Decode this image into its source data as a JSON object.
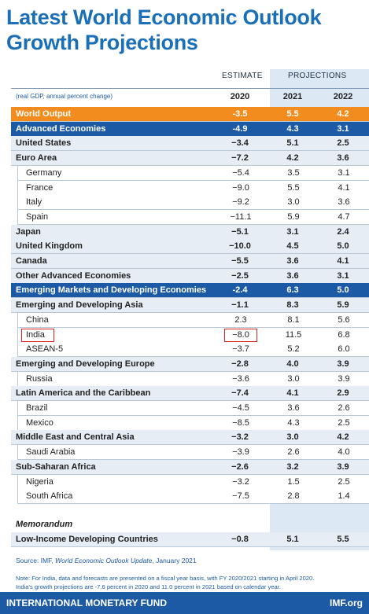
{
  "header": {
    "title_lines": [
      "Latest World Economic Outlook",
      "Growth Projections"
    ],
    "estimate": "ESTIMATE",
    "projections": "PROJECTIONS",
    "unit": "(real GDP, annual percent change)",
    "years": [
      "2020",
      "2021",
      "2022"
    ]
  },
  "table": {
    "rows": [
      [
        "World Output",
        "-3.5",
        "5.5",
        "4.2"
      ],
      [
        "Advanced Economies",
        "-4.9",
        "4.3",
        "3.1"
      ],
      [
        "United States",
        "−3.4",
        "5.1",
        "2.5"
      ],
      [
        "Euro Area",
        "−7.2",
        "4.2",
        "3.6"
      ],
      [
        "Germany",
        "−5.4",
        "3.5",
        "3.1"
      ],
      [
        "France",
        "−9.0",
        "5.5",
        "4.1"
      ],
      [
        "Italy",
        "−9.2",
        "3.0",
        "3.6"
      ],
      [
        "Spain",
        "−11.1",
        "5.9",
        "4.7"
      ],
      [
        "Japan",
        "−5.1",
        "3.1",
        "2.4"
      ],
      [
        "United Kingdom",
        "−10.0",
        "4.5",
        "5.0"
      ],
      [
        "Canada",
        "−5.5",
        "3.6",
        "4.1"
      ],
      [
        "Other Advanced Economies",
        "−2.5",
        "3.6",
        "3.1"
      ],
      [
        "Emerging Markets and Developing Economies",
        "-2.4",
        "6.3",
        "5.0"
      ],
      [
        "Emerging and Developing Asia",
        "−1.1",
        "8.3",
        "5.9"
      ],
      [
        "China",
        "2.3",
        "8.1",
        "5.6"
      ],
      [
        "India",
        "−8.0",
        "11.5",
        "6.8"
      ],
      [
        "ASEAN-5",
        "−3.7",
        "5.2",
        "6.0"
      ],
      [
        "Emerging and Developing Europe",
        "−2.8",
        "4.0",
        "3.9"
      ],
      [
        "Russia",
        "−3.6",
        "3.0",
        "3.9"
      ],
      [
        "Latin America and the Caribbean",
        "−7.4",
        "4.1",
        "2.9"
      ],
      [
        "Brazil",
        "−4.5",
        "3.6",
        "2.6"
      ],
      [
        "Mexico",
        "−8.5",
        "4.3",
        "2.5"
      ],
      [
        "Middle East and Central Asia",
        "−3.2",
        "3.0",
        "4.2"
      ],
      [
        "Saudi Arabia",
        "−3.9",
        "2.6",
        "4.0"
      ],
      [
        "Sub-Saharan Africa",
        "−2.6",
        "3.2",
        "3.9"
      ],
      [
        "Nigeria",
        "−3.2",
        "1.5",
        "2.5"
      ],
      [
        "South Africa",
        "−7.5",
        "2.8",
        "1.4"
      ]
    ],
    "memorandum": "Memorandum",
    "memo_row": [
      "Low-Income Developing Countries",
      "−0.8",
      "5.1",
      "5.5"
    ]
  },
  "source": {
    "prefix": "Source: IMF, ",
    "title": "World Economic Outlook Update",
    "suffix": ", January 2021"
  },
  "note": [
    "Note: For India, data and forecasts are presented on a fiscal year basis, with FY 2020/2021 starting in April 2020.",
    "India's growth projections are -7.6 percent in 2020 and 11.0 percent in 2021 based on calendar year."
  ],
  "footer": {
    "org": "INTERNATIONAL MONETARY FUND",
    "site": "IMF.org"
  }
}
